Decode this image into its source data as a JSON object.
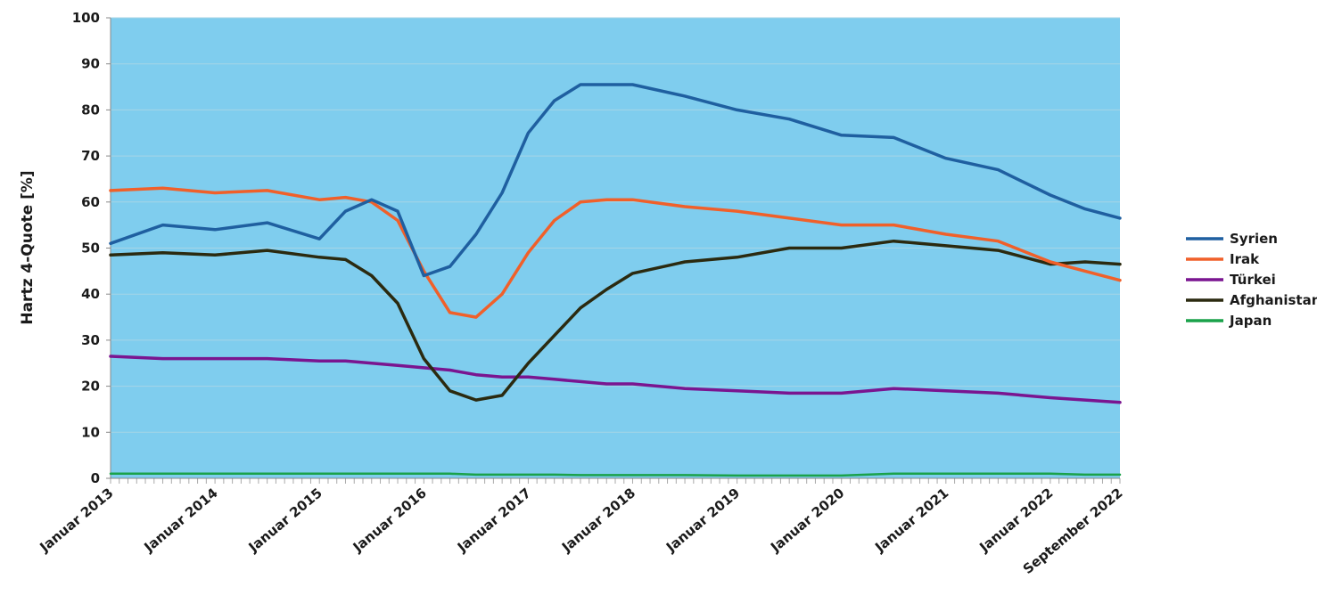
{
  "chart_data": {
    "type": "line",
    "ylabel": "Hartz 4-Quote [%]",
    "xlabel": "",
    "ylim": [
      0,
      100
    ],
    "yticks": [
      0,
      10,
      20,
      30,
      40,
      50,
      60,
      70,
      80,
      90,
      100
    ],
    "xlim": [
      "2013-01",
      "2022-09"
    ],
    "xtick_labels": [
      "Januar 2013",
      "Januar 2014",
      "Januar 2015",
      "Januar 2016",
      "Januar 2017",
      "Januar 2018",
      "Januar 2019",
      "Januar 2020",
      "Januar 2021",
      "Januar 2022",
      "September 2022"
    ],
    "grid": true,
    "legend_position": "right",
    "plot_background": "#7fcdee",
    "x": [
      "2013-01",
      "2013-07",
      "2014-01",
      "2014-07",
      "2015-01",
      "2015-04",
      "2015-07",
      "2015-10",
      "2016-01",
      "2016-04",
      "2016-07",
      "2016-10",
      "2017-01",
      "2017-04",
      "2017-07",
      "2017-10",
      "2018-01",
      "2018-07",
      "2019-01",
      "2019-07",
      "2020-01",
      "2020-07",
      "2021-01",
      "2021-07",
      "2022-01",
      "2022-05",
      "2022-09"
    ],
    "series": [
      {
        "name": "Syrien",
        "color": "#1f5fa0",
        "values": [
          51,
          55,
          54,
          55.5,
          52,
          58,
          60.5,
          58,
          44,
          46,
          53,
          62,
          75,
          82,
          85.5,
          85.5,
          85.5,
          83,
          80,
          78,
          74.5,
          74,
          69.5,
          67,
          61.5,
          58.5,
          56.5
        ]
      },
      {
        "name": "Irak",
        "color": "#f0602a",
        "values": [
          62.5,
          63,
          62,
          62.5,
          60.5,
          61,
          60,
          56,
          45,
          36,
          35,
          40,
          49,
          56,
          60,
          60.5,
          60.5,
          59,
          58,
          56.5,
          55,
          55,
          53,
          51.5,
          47,
          45,
          43
        ]
      },
      {
        "name": "Türkei",
        "color": "#7a1590",
        "values": [
          26.5,
          26,
          26,
          26,
          25.5,
          25.5,
          25,
          24.5,
          24,
          23.5,
          22.5,
          22,
          22,
          21.5,
          21,
          20.5,
          20.5,
          19.5,
          19,
          18.5,
          18.5,
          19.5,
          19,
          18.5,
          17.5,
          17,
          16.5
        ]
      },
      {
        "name": "Afghanistan",
        "color": "#2b2a10",
        "values": [
          48.5,
          49,
          48.5,
          49.5,
          48,
          47.5,
          44,
          38,
          26,
          19,
          17,
          18,
          25,
          31,
          37,
          41,
          44.5,
          47,
          48,
          50,
          50,
          51.5,
          50.5,
          49.5,
          46.5,
          47,
          46.5
        ]
      },
      {
        "name": "Japan",
        "color": "#1aa24a",
        "values": [
          1,
          1,
          1,
          1,
          1,
          1,
          1,
          1,
          1,
          1,
          0.8,
          0.8,
          0.8,
          0.8,
          0.7,
          0.7,
          0.7,
          0.7,
          0.6,
          0.6,
          0.6,
          1,
          1,
          1,
          1,
          0.8,
          0.8
        ]
      }
    ]
  }
}
